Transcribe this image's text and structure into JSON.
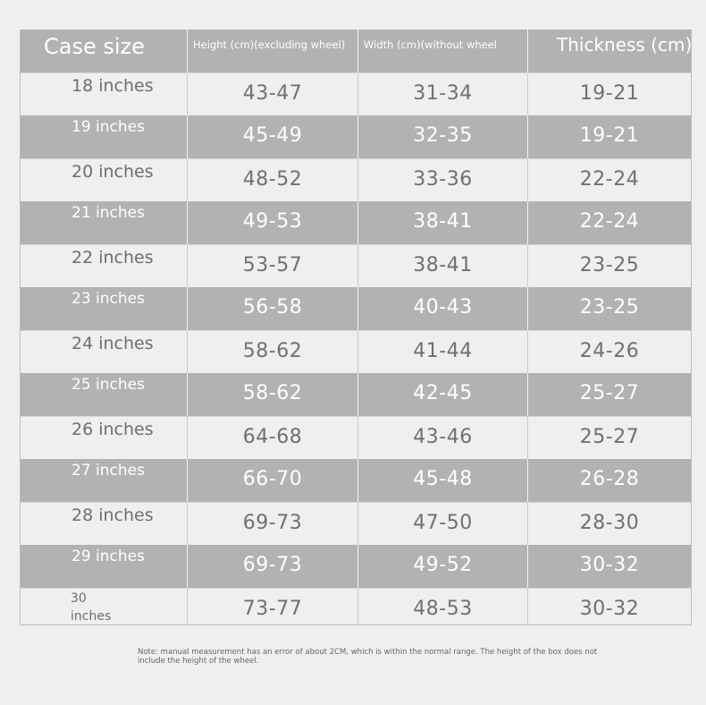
{
  "table": {
    "headers": {
      "size": "Case size",
      "height": "Height (cm)(excluding wheel)",
      "width": "Width (cm)(without wheel",
      "thickness": "Thickness (cm)"
    },
    "rows": [
      {
        "size": "18 inches",
        "height": "43-47",
        "width": "31-34",
        "thickness": "19-21"
      },
      {
        "size": "19 inches",
        "height": "45-49",
        "width": "32-35",
        "thickness": "19-21"
      },
      {
        "size": "20 inches",
        "height": "48-52",
        "width": "33-36",
        "thickness": "22-24"
      },
      {
        "size": "21 inches",
        "height": "49-53",
        "width": "38-41",
        "thickness": "22-24"
      },
      {
        "size": "22 inches",
        "height": "53-57",
        "width": "38-41",
        "thickness": "23-25"
      },
      {
        "size": "23 inches",
        "height": "56-58",
        "width": "40-43",
        "thickness": "23-25"
      },
      {
        "size": "24 inches",
        "height": "58-62",
        "width": "41-44",
        "thickness": "24-26"
      },
      {
        "size": "25 inches",
        "height": "58-62",
        "width": "42-45",
        "thickness": "25-27"
      },
      {
        "size": "26 inches",
        "height": "64-68",
        "width": "43-46",
        "thickness": "25-27"
      },
      {
        "size": "27 inches",
        "height": "66-70",
        "width": "45-48",
        "thickness": "26-28"
      },
      {
        "size": "28 inches",
        "height": "69-73",
        "width": "47-50",
        "thickness": "28-30"
      },
      {
        "size": "29 inches",
        "height": "69-73",
        "width": "49-52",
        "thickness": "30-32"
      },
      {
        "size": "30 inches",
        "height": "73-77",
        "width": "48-53",
        "thickness": "30-32"
      }
    ]
  },
  "note": "Note: manual measurement has an error of about 2CM, which is within the normal range. The height of the box does not include the height of the wheel.",
  "colors": {
    "background": "#efefef",
    "header_row": "#b2b2b2",
    "dark_row": "#b2b2b2",
    "light_row": "#efefef",
    "dark_text": "#ffffff",
    "light_text": "#707070"
  }
}
